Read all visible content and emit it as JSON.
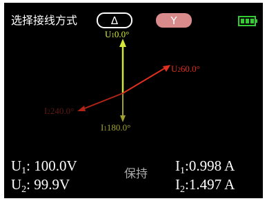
{
  "header": {
    "title": "选择接线方式",
    "buttons": [
      "Δ",
      "Y"
    ]
  },
  "phasors": [
    {
      "symbol": "U",
      "sub": "1",
      "angle": "0.0°"
    },
    {
      "symbol": "U",
      "sub": "2",
      "angle": "60.0°"
    },
    {
      "symbol": "I",
      "sub": "1",
      "angle": "180.0°"
    },
    {
      "symbol": "I",
      "sub": "2",
      "angle": "240.0°"
    }
  ],
  "readouts": {
    "voltages": [
      {
        "symbol": "U",
        "sub": "1",
        "value": ": 100.0V"
      },
      {
        "symbol": "U",
        "sub": "2",
        "value": ":  99.9V"
      }
    ],
    "status": "保持",
    "currents": [
      {
        "symbol": "I",
        "sub": "1",
        "value": ":0.998 A"
      },
      {
        "symbol": "I",
        "sub": "2",
        "value": ":1.497 A"
      }
    ]
  }
}
